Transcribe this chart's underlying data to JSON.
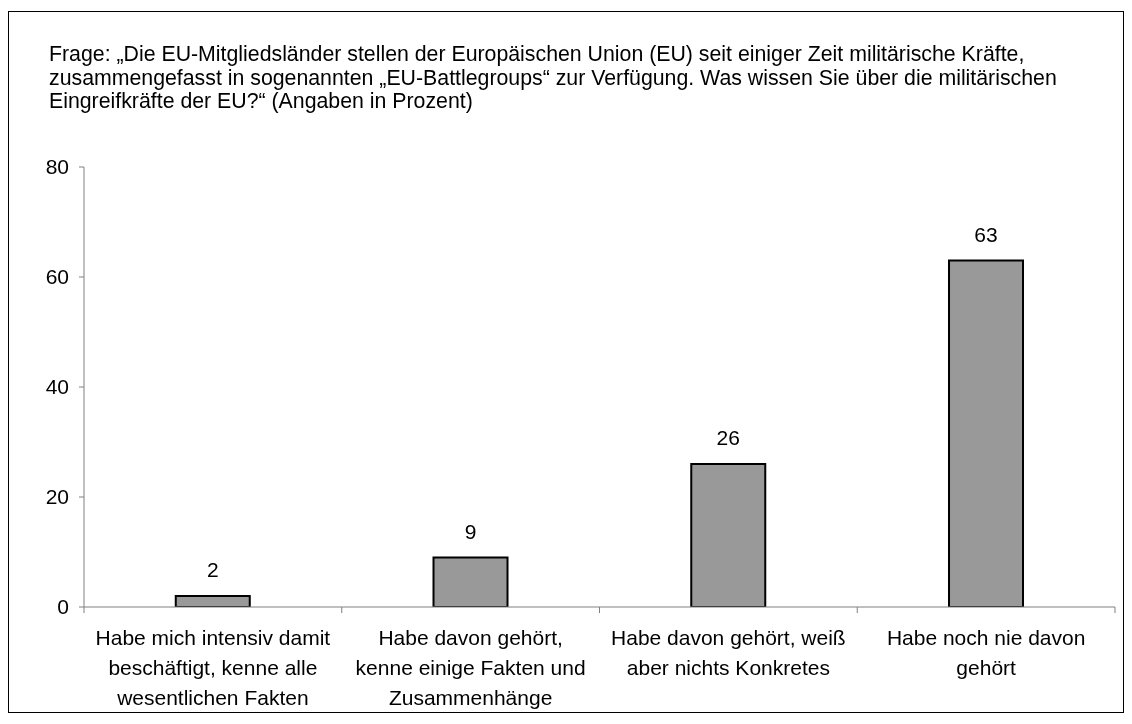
{
  "chart_data": {
    "type": "bar",
    "title": "Frage: „Die EU-Mitgliedsländer stellen der Europäischen Union (EU) seit einiger Zeit militärische Kräfte, zusammengefasst in sogenannten „EU-Battlegroups“ zur Verfügung. Was wissen Sie über die militärischen Eingreifkräfte der EU?“ (Angaben in Prozent)",
    "categories": [
      "Habe mich intensiv damit beschäftigt, kenne alle wesentlichen Fakten",
      "Habe davon gehört, kenne einige Fakten und Zusammenhänge",
      "Habe davon gehört, weiß aber nichts Konkretes",
      "Habe noch nie davon gehört"
    ],
    "values": [
      2,
      9,
      26,
      63
    ],
    "color": "#999999",
    "ylim": [
      0,
      80
    ],
    "yticks": [
      0,
      20,
      40,
      60,
      80
    ],
    "data_labels": true
  }
}
